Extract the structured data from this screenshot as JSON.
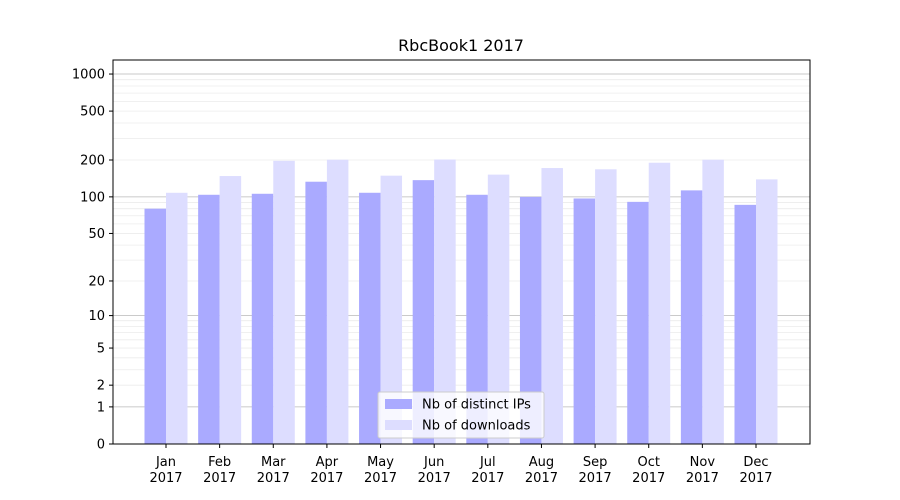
{
  "chart_data": {
    "type": "bar",
    "title": "RbcBook1 2017",
    "xlabel": "",
    "ylabel": "",
    "yscale": "symlog",
    "ylim": [
      0,
      1300
    ],
    "yticks": [
      0,
      1,
      2,
      5,
      10,
      20,
      50,
      100,
      200,
      500,
      1000
    ],
    "grid": true,
    "legend_position": "bottom-center",
    "categories": [
      "Jan\n2017",
      "Feb\n2017",
      "Mar\n2017",
      "Apr\n2017",
      "May\n2017",
      "Jun\n2017",
      "Jul\n2017",
      "Aug\n2017",
      "Sep\n2017",
      "Oct\n2017",
      "Nov\n2017",
      "Dec\n2017"
    ],
    "series": [
      {
        "name": "Nb of distinct IPs",
        "color": "#aaaaff",
        "values": [
          80,
          104,
          106,
          133,
          108,
          137,
          104,
          100,
          97,
          91,
          113,
          86
        ]
      },
      {
        "name": "Nb of downloads",
        "color": "#ddddff",
        "values": [
          108,
          148,
          197,
          201,
          149,
          202,
          152,
          172,
          168,
          190,
          201,
          139
        ]
      }
    ]
  }
}
